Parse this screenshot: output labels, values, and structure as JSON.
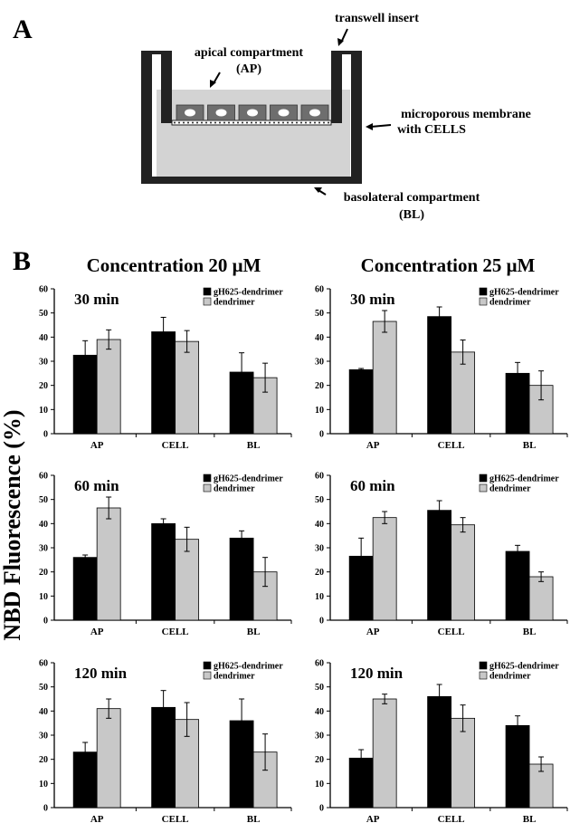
{
  "figure": {
    "panel_a_letter": "A",
    "panel_b_letter": "B",
    "y_axis_label": "NBD  Fluorescence (%)",
    "column_titles": [
      "Concentration 20 μM",
      "Concentration 25 μM"
    ]
  },
  "diagram": {
    "transwell_insert": "transwell insert",
    "apical_line1": "apical compartment",
    "apical_line2": "(AP)",
    "membrane_line1": "microporous membrane",
    "membrane_line2": "with CELLS",
    "basolateral_line1": "basolateral compartment",
    "basolateral_line2": "(BL)",
    "colors": {
      "medium": "#d3d3d3",
      "cell_box": "#6e6e6e",
      "wall": "#222222"
    }
  },
  "chart_data": [
    {
      "type": "bar",
      "column": 0,
      "row": 0,
      "label": "30 min",
      "categories": [
        "AP",
        "CELL",
        "BL"
      ],
      "ylim": [
        0,
        60
      ],
      "yticks": [
        0,
        10,
        20,
        30,
        40,
        50,
        60
      ],
      "series": [
        {
          "name": "gH625-dendrimer",
          "color": "#000000",
          "values": [
            32.5,
            42.2,
            25.5
          ],
          "errors": [
            6,
            6,
            8
          ]
        },
        {
          "name": "dendrimer",
          "color": "#c8c8c8",
          "values": [
            39,
            38.2,
            23.2
          ],
          "errors": [
            4,
            4.5,
            6
          ]
        }
      ]
    },
    {
      "type": "bar",
      "column": 1,
      "row": 0,
      "label": "30 min",
      "categories": [
        "AP",
        "CELL",
        "BL"
      ],
      "ylim": [
        0,
        60
      ],
      "yticks": [
        0,
        10,
        20,
        30,
        40,
        50,
        60
      ],
      "series": [
        {
          "name": "gH625-dendrimer",
          "color": "#000000",
          "values": [
            26.5,
            48.5,
            25
          ],
          "errors": [
            0.5,
            4,
            4.5
          ]
        },
        {
          "name": "dendrimer",
          "color": "#c8c8c8",
          "values": [
            46.5,
            33.8,
            20
          ],
          "errors": [
            4.5,
            5,
            6
          ]
        }
      ]
    },
    {
      "type": "bar",
      "column": 0,
      "row": 1,
      "label": "60 min",
      "categories": [
        "AP",
        "CELL",
        "BL"
      ],
      "ylim": [
        0,
        60
      ],
      "yticks": [
        0,
        10,
        20,
        30,
        40,
        50,
        60
      ],
      "series": [
        {
          "name": "gH625-dendrimer",
          "color": "#000000",
          "values": [
            26,
            40,
            34
          ],
          "errors": [
            1,
            2,
            3
          ]
        },
        {
          "name": "dendrimer",
          "color": "#c8c8c8",
          "values": [
            46.5,
            33.5,
            20
          ],
          "errors": [
            4.5,
            5,
            6
          ]
        }
      ]
    },
    {
      "type": "bar",
      "column": 1,
      "row": 1,
      "label": "60 min",
      "categories": [
        "AP",
        "CELL",
        "BL"
      ],
      "ylim": [
        0,
        60
      ],
      "yticks": [
        0,
        10,
        20,
        30,
        40,
        50,
        60
      ],
      "series": [
        {
          "name": "gH625-dendrimer",
          "color": "#000000",
          "values": [
            26.5,
            45.5,
            28.5
          ],
          "errors": [
            7.5,
            4,
            2.5
          ]
        },
        {
          "name": "dendrimer",
          "color": "#c8c8c8",
          "values": [
            42.5,
            39.5,
            18
          ],
          "errors": [
            2.5,
            3,
            2
          ]
        }
      ]
    },
    {
      "type": "bar",
      "column": 0,
      "row": 2,
      "label": "120 min",
      "categories": [
        "AP",
        "CELL",
        "BL"
      ],
      "ylim": [
        0,
        60
      ],
      "yticks": [
        0,
        10,
        20,
        30,
        40,
        50,
        60
      ],
      "series": [
        {
          "name": "gH625-dendrimer",
          "color": "#000000",
          "values": [
            23,
            41.5,
            36
          ],
          "errors": [
            4,
            7,
            9
          ]
        },
        {
          "name": "dendrimer",
          "color": "#c8c8c8",
          "values": [
            41,
            36.5,
            23
          ],
          "errors": [
            4,
            7,
            7.5
          ]
        }
      ]
    },
    {
      "type": "bar",
      "column": 1,
      "row": 2,
      "label": "120 min",
      "categories": [
        "AP",
        "CELL",
        "BL"
      ],
      "ylim": [
        0,
        60
      ],
      "yticks": [
        0,
        10,
        20,
        30,
        40,
        50,
        60
      ],
      "series": [
        {
          "name": "gH625-dendrimer",
          "color": "#000000",
          "values": [
            20.5,
            46,
            34
          ],
          "errors": [
            3.5,
            5,
            4
          ]
        },
        {
          "name": "dendrimer",
          "color": "#c8c8c8",
          "values": [
            45,
            37,
            18
          ],
          "errors": [
            2,
            5.5,
            3
          ]
        }
      ]
    }
  ]
}
